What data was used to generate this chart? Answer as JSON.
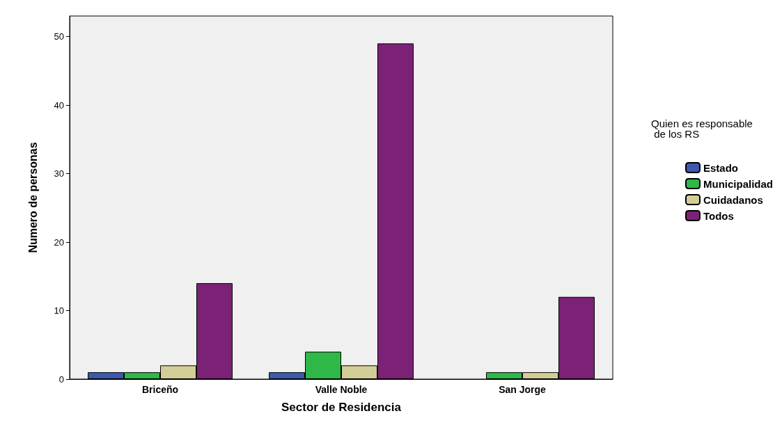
{
  "chart_data": {
    "type": "bar",
    "xlabel": "Sector de Residencia",
    "ylabel": "Numero de personas",
    "legend_title": "Quien es responsable de los RS",
    "categories": [
      "Briceño",
      "Valle Noble",
      "San Jorge"
    ],
    "series": [
      {
        "name": "Estado",
        "color": "#3e58ac",
        "values": [
          1,
          1,
          null
        ]
      },
      {
        "name": "Municipalidad",
        "color": "#2eb848",
        "values": [
          1,
          4,
          1
        ]
      },
      {
        "name": "Cuidadanos",
        "color": "#d3ce97",
        "values": [
          2,
          2,
          1
        ]
      },
      {
        "name": "Todos",
        "color": "#7b2277",
        "values": [
          14,
          49,
          12
        ]
      }
    ],
    "ylim": [
      0,
      53
    ],
    "yticks": [
      0,
      10,
      20,
      30,
      40,
      50
    ],
    "grid": false,
    "legend": "right"
  }
}
